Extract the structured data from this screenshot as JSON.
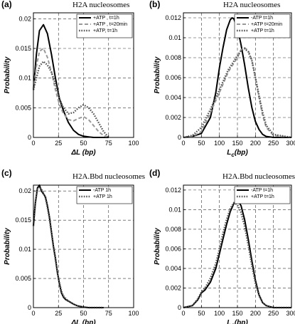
{
  "chart_data": [
    {
      "type": "line",
      "panel": "(a)",
      "title": "H2A nucleosomes",
      "xlabel": "ΔL (bp)",
      "ylabel": "Probability",
      "xlim": [
        0,
        100
      ],
      "ylim": [
        0,
        0.021
      ],
      "xticks": [
        "0",
        "25",
        "50",
        "75",
        "100"
      ],
      "yticks": [
        "0",
        "0.005",
        "0.01",
        "0.015",
        "0.02"
      ],
      "grid": true,
      "legend_position": "top-right",
      "series": [
        {
          "name": "+ATP , t=1h",
          "color": "#000000",
          "style": "solid",
          "x": [
            0,
            3,
            6,
            10,
            14,
            18,
            22,
            26,
            30,
            35,
            40,
            45,
            50,
            55,
            60,
            65,
            70,
            75
          ],
          "y": [
            0.008,
            0.014,
            0.018,
            0.019,
            0.0175,
            0.014,
            0.01,
            0.0065,
            0.0045,
            0.0025,
            0.0012,
            0.0005,
            0.0002,
            0.0001,
            0,
            0,
            0,
            0
          ]
        },
        {
          "name": "+ATP , t=20min",
          "color": "#999999",
          "style": "dashed",
          "x": [
            0,
            3,
            6,
            10,
            14,
            18,
            22,
            26,
            30,
            35,
            40,
            45,
            50,
            55,
            60,
            65,
            70,
            75
          ],
          "y": [
            0.008,
            0.012,
            0.0145,
            0.015,
            0.0135,
            0.011,
            0.008,
            0.0055,
            0.004,
            0.003,
            0.0028,
            0.0032,
            0.0035,
            0.003,
            0.002,
            0.001,
            0.0003,
            0
          ]
        },
        {
          "name": "+ATP, t=1h",
          "color": "#555555",
          "style": "dotted",
          "x": [
            0,
            3,
            6,
            10,
            14,
            18,
            22,
            26,
            30,
            35,
            40,
            45,
            50,
            55,
            60,
            65,
            70,
            75
          ],
          "y": [
            0.008,
            0.01,
            0.012,
            0.0128,
            0.0122,
            0.011,
            0.009,
            0.0065,
            0.005,
            0.004,
            0.0042,
            0.005,
            0.0055,
            0.005,
            0.004,
            0.0025,
            0.001,
            0
          ]
        }
      ]
    },
    {
      "type": "line",
      "panel": "(b)",
      "title": "H2A nucleosomes",
      "xlabel": "Lc(bp)",
      "ylabel": "Probability",
      "xlim": [
        0,
        300
      ],
      "ylim": [
        0,
        0.0125
      ],
      "xticks": [
        "0",
        "50",
        "100",
        "150",
        "200",
        "250",
        "300"
      ],
      "yticks": [
        "0",
        "0.002",
        "0.004",
        "0.006",
        "0.008",
        "0.01",
        "0.012"
      ],
      "grid": true,
      "legend_position": "top-right",
      "series": [
        {
          "name": "-ATP t=1h",
          "color": "#000000",
          "style": "solid",
          "x": [
            0,
            25,
            50,
            75,
            90,
            100,
            110,
            120,
            130,
            135,
            140,
            150,
            160,
            170,
            180,
            190,
            200,
            210,
            220,
            230,
            250,
            300
          ],
          "y": [
            0,
            0.0001,
            0.0004,
            0.002,
            0.0045,
            0.007,
            0.009,
            0.0108,
            0.0118,
            0.012,
            0.0119,
            0.011,
            0.0093,
            0.0073,
            0.005,
            0.003,
            0.0016,
            0.0008,
            0.0003,
            0.0001,
            0,
            0
          ]
        },
        {
          "name": "+ATP t=20min",
          "color": "#999999",
          "style": "dashed",
          "x": [
            0,
            25,
            50,
            75,
            100,
            125,
            150,
            160,
            170,
            180,
            190,
            200,
            210,
            220,
            230,
            250,
            300
          ],
          "y": [
            0,
            0.0001,
            0.0006,
            0.0025,
            0.0045,
            0.0066,
            0.008,
            0.0088,
            0.009,
            0.0087,
            0.0078,
            0.006,
            0.004,
            0.0022,
            0.001,
            0.0002,
            0
          ]
        },
        {
          "name": "+ATP t=1h",
          "color": "#555555",
          "style": "dotted",
          "x": [
            0,
            25,
            50,
            75,
            100,
            125,
            150,
            160,
            170,
            180,
            190,
            200,
            210,
            220,
            230,
            250,
            300
          ],
          "y": [
            0,
            0.0002,
            0.001,
            0.0028,
            0.0048,
            0.0068,
            0.0082,
            0.0087,
            0.0089,
            0.0086,
            0.0077,
            0.006,
            0.0042,
            0.0025,
            0.0012,
            0.0003,
            0
          ]
        }
      ]
    },
    {
      "type": "line",
      "panel": "(c)",
      "title": "H2A.Bbd nucleosomes",
      "xlabel": "ΔL (bp)",
      "ylabel": "Probability",
      "xlim": [
        0,
        100
      ],
      "ylim": [
        0,
        0.021
      ],
      "xticks": [
        "0",
        "25",
        "50",
        "75",
        "100"
      ],
      "yticks": [
        "0",
        "0.005",
        "0.01",
        "0.015",
        "0.02"
      ],
      "grid": true,
      "legend_position": "top-right",
      "series": [
        {
          "name": "-ATP 1h",
          "color": "#000000",
          "style": "solid",
          "x": [
            0,
            2,
            4,
            6,
            8,
            10,
            12,
            14,
            16,
            18,
            20,
            22,
            24,
            26,
            28,
            30,
            32,
            34,
            36,
            38,
            40,
            44,
            50,
            55,
            60,
            70
          ],
          "y": [
            0.014,
            0.018,
            0.0205,
            0.021,
            0.02,
            0.0195,
            0.019,
            0.0175,
            0.0155,
            0.013,
            0.0105,
            0.0085,
            0.006,
            0.004,
            0.0025,
            0.0018,
            0.0014,
            0.0012,
            0.001,
            0.0008,
            0.0006,
            0.0003,
            0.0001,
            0,
            0,
            0
          ]
        },
        {
          "name": "+ATP 1h",
          "color": "#555555",
          "style": "dotted",
          "x": [
            0,
            2,
            4,
            6,
            8,
            10,
            12,
            14,
            16,
            18,
            20,
            22,
            24,
            26,
            28,
            30,
            32,
            34,
            36,
            38,
            40,
            44,
            50,
            55,
            60,
            70
          ],
          "y": [
            0.014,
            0.018,
            0.0203,
            0.0207,
            0.0203,
            0.0197,
            0.0188,
            0.0172,
            0.0152,
            0.0128,
            0.0103,
            0.0082,
            0.006,
            0.0042,
            0.0028,
            0.002,
            0.0016,
            0.0013,
            0.001,
            0.0008,
            0.0006,
            0.0003,
            0.0001,
            0,
            0,
            0
          ]
        }
      ]
    },
    {
      "type": "line",
      "panel": "(d)",
      "title": "H2A.Bbd nucleosomes",
      "xlabel": "Lc(bp)",
      "ylabel": "Probability",
      "xlim": [
        0,
        300
      ],
      "ylim": [
        0,
        0.0125
      ],
      "xticks": [
        "0",
        "50",
        "100",
        "150",
        "200",
        "250",
        "300"
      ],
      "yticks": [
        "0",
        "0.002",
        "0.004",
        "0.006",
        "0.008",
        "0.01",
        "0.012"
      ],
      "grid": true,
      "legend_position": "top-right",
      "series": [
        {
          "name": "-ATP t=1h",
          "color": "#000000",
          "style": "solid",
          "x": [
            0,
            25,
            40,
            50,
            60,
            75,
            90,
            100,
            110,
            120,
            130,
            140,
            150,
            160,
            170,
            180,
            190,
            200,
            210,
            220,
            230,
            250,
            300
          ],
          "y": [
            0,
            0.0002,
            0.0008,
            0.0015,
            0.0018,
            0.0026,
            0.004,
            0.0055,
            0.007,
            0.0085,
            0.0098,
            0.0106,
            0.011,
            0.0104,
            0.009,
            0.007,
            0.0048,
            0.0028,
            0.0013,
            0.0005,
            0.0002,
            0,
            0
          ]
        },
        {
          "name": "+ATP t=1h",
          "color": "#555555",
          "style": "dotted",
          "x": [
            0,
            25,
            40,
            50,
            60,
            75,
            90,
            100,
            110,
            120,
            130,
            140,
            150,
            160,
            170,
            180,
            190,
            200,
            210,
            220,
            230,
            250,
            300
          ],
          "y": [
            0,
            0.0002,
            0.0009,
            0.0016,
            0.002,
            0.003,
            0.0045,
            0.006,
            0.0076,
            0.009,
            0.0101,
            0.0107,
            0.0105,
            0.0097,
            0.0083,
            0.0064,
            0.0043,
            0.0025,
            0.0012,
            0.0005,
            0.0002,
            0,
            0
          ]
        }
      ]
    }
  ]
}
